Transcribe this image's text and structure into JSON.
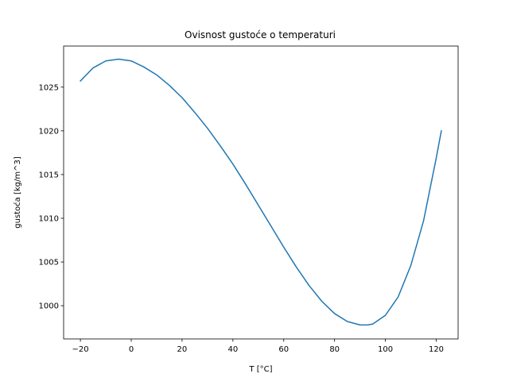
{
  "chart_data": {
    "type": "line",
    "title": "Ovisnost gustoće o temperaturi",
    "xlabel": "T [°C]",
    "ylabel": "gustoća [kg/m^3]",
    "xlim": [
      -26.6,
      128.6
    ],
    "ylim": [
      996.2,
      1029.7
    ],
    "xticks": [
      -20,
      0,
      20,
      40,
      60,
      80,
      100,
      120
    ],
    "xtick_labels": [
      "−20",
      "0",
      "20",
      "40",
      "60",
      "80",
      "100",
      "120"
    ],
    "yticks": [
      1000,
      1005,
      1010,
      1015,
      1020,
      1025
    ],
    "ytick_labels": [
      "1000",
      "1005",
      "1010",
      "1015",
      "1020",
      "1025"
    ],
    "grid": false,
    "legend": "none",
    "series": [
      {
        "color": "#1f77b4",
        "x": [
          -20,
          -15,
          -10,
          -5,
          0,
          5,
          10,
          15,
          20,
          25,
          30,
          35,
          40,
          45,
          50,
          55,
          60,
          65,
          70,
          75,
          80,
          85,
          90,
          93,
          95,
          100,
          105,
          110,
          115,
          120,
          122
        ],
        "y": [
          1025.7,
          1027.2,
          1028.0,
          1028.2,
          1028.0,
          1027.3,
          1026.4,
          1025.2,
          1023.8,
          1022.1,
          1020.3,
          1018.3,
          1016.2,
          1013.9,
          1011.5,
          1009.1,
          1006.7,
          1004.4,
          1002.3,
          1000.5,
          999.1,
          998.2,
          997.8,
          997.8,
          997.9,
          998.9,
          1001.0,
          1004.6,
          1009.7,
          1016.9,
          1020.0
        ]
      }
    ]
  }
}
